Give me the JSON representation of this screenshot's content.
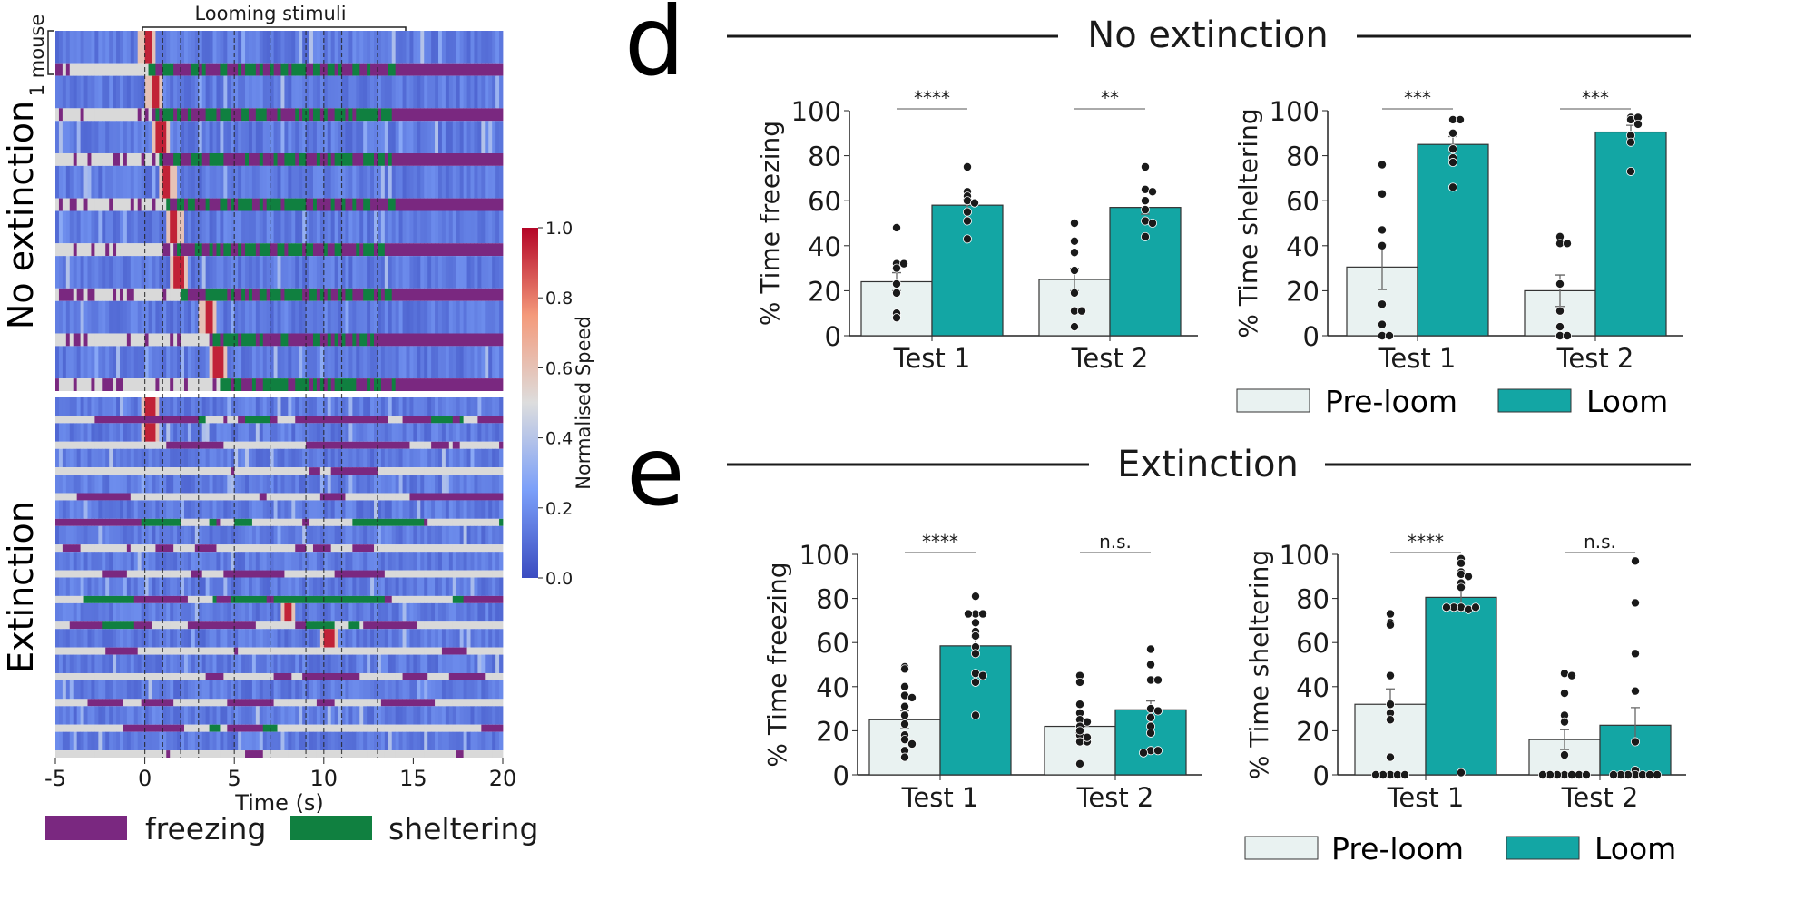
{
  "panel_letters": {
    "d": "d",
    "e": "e"
  },
  "section_titles": {
    "d": "No extinction",
    "e": "Extinction"
  },
  "legend_bars": {
    "pre": "Pre-loom",
    "loom": "Loom"
  },
  "colors": {
    "pre": "#e9f2f1",
    "loom": "#13a6a4",
    "freezing": "#7a2880",
    "sheltering": "#108040",
    "neutral": "#d9d9d9",
    "dots": "#1a1a1a"
  },
  "chart_data": [
    {
      "type": "heatmap",
      "title": "Looming stimuli",
      "group_labels": [
        "No extinction",
        "Extinction"
      ],
      "mice_per_group": [
        8,
        14
      ],
      "row_label": "1 mouse",
      "xlabel": "Time (s)",
      "xlim": [
        -5,
        20
      ],
      "xticks": [
        "-5",
        "0",
        "5",
        "10",
        "15",
        "20"
      ],
      "looming_times_s": [
        0,
        1,
        2,
        3,
        5,
        7,
        9,
        10,
        11,
        13
      ],
      "colorbar": {
        "label": "Normalised Speed",
        "range": [
          0,
          1
        ],
        "ticks": [
          "0.0",
          "0.2",
          "0.4",
          "0.6",
          "0.8",
          "1.0"
        ],
        "colormap": "coolwarm"
      },
      "legend": [
        {
          "label": "freezing"
        },
        {
          "label": "sheltering"
        }
      ]
    },
    {
      "type": "bar",
      "panel": "d-freezing",
      "ylabel": "% Time freezing",
      "ylim": [
        0,
        100
      ],
      "yticks": [
        "0",
        "20",
        "40",
        "60",
        "80",
        "100"
      ],
      "categories": [
        "Test 1",
        "Test 2"
      ],
      "series": [
        {
          "name": "Pre-loom",
          "values": [
            24,
            25
          ],
          "sem": [
            4,
            5
          ],
          "points": [
            [
              48,
              32,
              32,
              30,
              23,
              19,
              10,
              8
            ],
            [
              50,
              42,
              37,
              29,
              19,
              11,
              11,
              4
            ]
          ]
        },
        {
          "name": "Loom",
          "values": [
            58,
            57
          ],
          "sem": [
            2.5,
            3
          ],
          "points": [
            [
              75,
              64,
              62,
              60,
              59,
              55,
              51,
              43
            ],
            [
              75,
              65,
              64,
              60,
              56,
              51,
              50,
              44
            ]
          ]
        }
      ],
      "significance": [
        "****",
        "**"
      ]
    },
    {
      "type": "bar",
      "panel": "d-sheltering",
      "ylabel": "% Time sheltering",
      "ylim": [
        0,
        100
      ],
      "yticks": [
        "0",
        "20",
        "40",
        "60",
        "80",
        "100"
      ],
      "categories": [
        "Test 1",
        "Test 2"
      ],
      "series": [
        {
          "name": "Pre-loom",
          "values": [
            30.5,
            20
          ],
          "sem": [
            10,
            7
          ],
          "points": [
            [
              76,
              63,
              47,
              40,
              14,
              5,
              0,
              0
            ],
            [
              44,
              41,
              41,
              23,
              11,
              4,
              0,
              0
            ]
          ]
        },
        {
          "name": "Loom",
          "values": [
            85,
            90.5
          ],
          "sem": [
            3.5,
            3
          ],
          "points": [
            [
              96,
              96,
              90,
              83,
              79,
              77,
              66
            ],
            [
              97,
              96,
              97,
              94,
              89,
              86,
              73
            ]
          ]
        }
      ],
      "significance": [
        "***",
        "***"
      ]
    },
    {
      "type": "bar",
      "panel": "e-freezing",
      "ylabel": "% Time freezing",
      "ylim": [
        0,
        100
      ],
      "yticks": [
        "0",
        "20",
        "40",
        "60",
        "80",
        "100"
      ],
      "categories": [
        "Test 1",
        "Test 2"
      ],
      "series": [
        {
          "name": "Pre-loom",
          "values": [
            25,
            22
          ],
          "sem": [
            4,
            3
          ],
          "points": [
            [
              49,
              48,
              40,
              36,
              35,
              31,
              27,
              23,
              18,
              16,
              14,
              11,
              8
            ],
            [
              45,
              42,
              32,
              28,
              25,
              22,
              18,
              15,
              15,
              5,
              20,
              24,
              17
            ]
          ]
        },
        {
          "name": "Loom",
          "values": [
            58.5,
            29.5
          ],
          "sem": [
            4,
            4
          ],
          "points": [
            [
              81,
              73,
              73,
              73,
              69,
              65,
              63,
              58,
              55,
              46,
              45,
              42,
              27
            ],
            [
              57,
              50,
              43,
              43,
              30,
              29,
              26,
              22,
              19,
              11,
              11,
              10
            ]
          ]
        }
      ],
      "significance": [
        "****",
        "n.s."
      ]
    },
    {
      "type": "bar",
      "panel": "e-sheltering",
      "ylabel": "% Time sheltering",
      "ylim": [
        0,
        100
      ],
      "yticks": [
        "0",
        "20",
        "40",
        "60",
        "80",
        "100"
      ],
      "categories": [
        "Test 1",
        "Test 2"
      ],
      "series": [
        {
          "name": "Pre-loom",
          "values": [
            32,
            16
          ],
          "sem": [
            7,
            4.5
          ],
          "points": [
            [
              73,
              69,
              68,
              45,
              32,
              28,
              25,
              8,
              0,
              0,
              0,
              0,
              0
            ],
            [
              46,
              45,
              37,
              27,
              24,
              9,
              0,
              0,
              0,
              0,
              0,
              0,
              0
            ]
          ]
        },
        {
          "name": "Loom",
          "values": [
            80.5,
            22.5
          ],
          "sem": [
            6,
            8
          ],
          "points": [
            [
              98,
              96,
              92,
              91,
              90,
              87,
              85,
              76,
              75,
              76,
              76,
              76,
              1
            ],
            [
              97,
              78,
              55,
              38,
              15,
              2,
              0,
              0,
              0,
              0,
              0,
              0,
              0
            ]
          ]
        }
      ],
      "significance": [
        "****",
        "n.s."
      ]
    }
  ]
}
